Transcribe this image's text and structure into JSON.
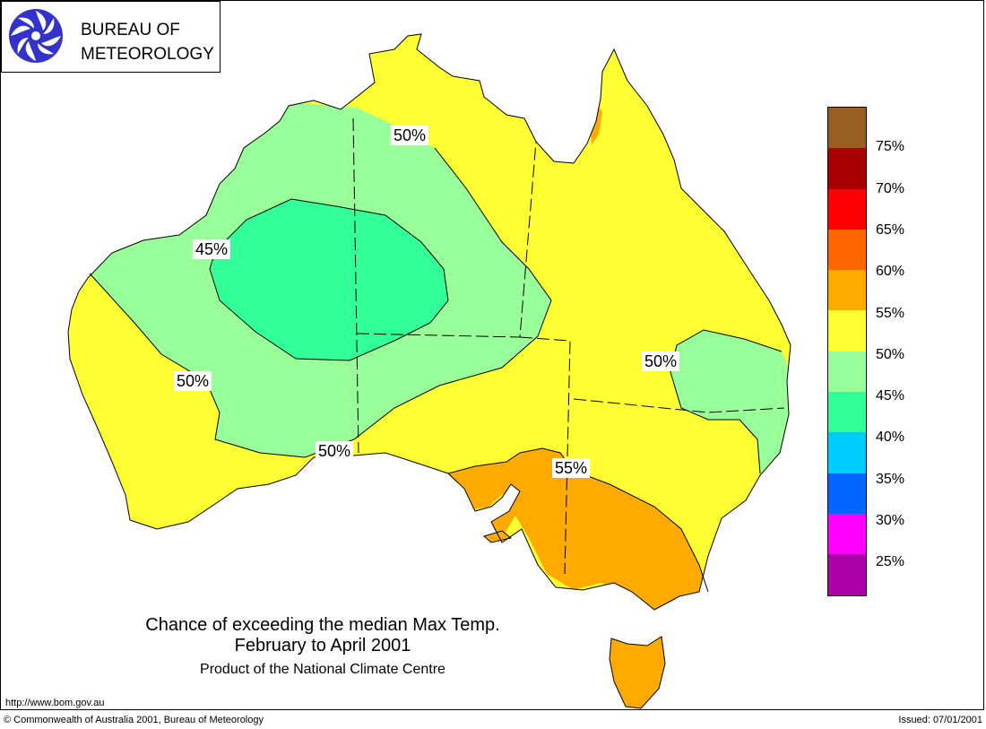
{
  "logo": {
    "line1": "BUREAU OF",
    "line2": "METEOROLOGY",
    "icon": "bom-swirl-icon"
  },
  "map_labels": [
    {
      "text": "50%"
    },
    {
      "text": "45%"
    },
    {
      "text": "50%"
    },
    {
      "text": "50%"
    },
    {
      "text": "55%"
    },
    {
      "text": "50%"
    }
  ],
  "legend": {
    "colors": [
      "#986020",
      "#a80000",
      "#ff0000",
      "#ff6600",
      "#ffaa00",
      "#ffff33",
      "#99ff99",
      "#33ff99",
      "#00ccff",
      "#0066ff",
      "#ff00ff",
      "#aa00aa"
    ],
    "labels": [
      "75%",
      "70%",
      "65%",
      "60%",
      "55%",
      "50%",
      "45%",
      "40%",
      "35%",
      "30%",
      "25%"
    ]
  },
  "caption": {
    "line1": "Chance of exceeding the median Max Temp.",
    "line2": "February to April 2001",
    "line3": "Product of the National Climate Centre"
  },
  "url": "http://www.bom.gov.au",
  "footer": {
    "copyright": "© Commonwealth of Australia 2001, Bureau of Meteorology",
    "issued": "Issued: 07/01/2001"
  }
}
